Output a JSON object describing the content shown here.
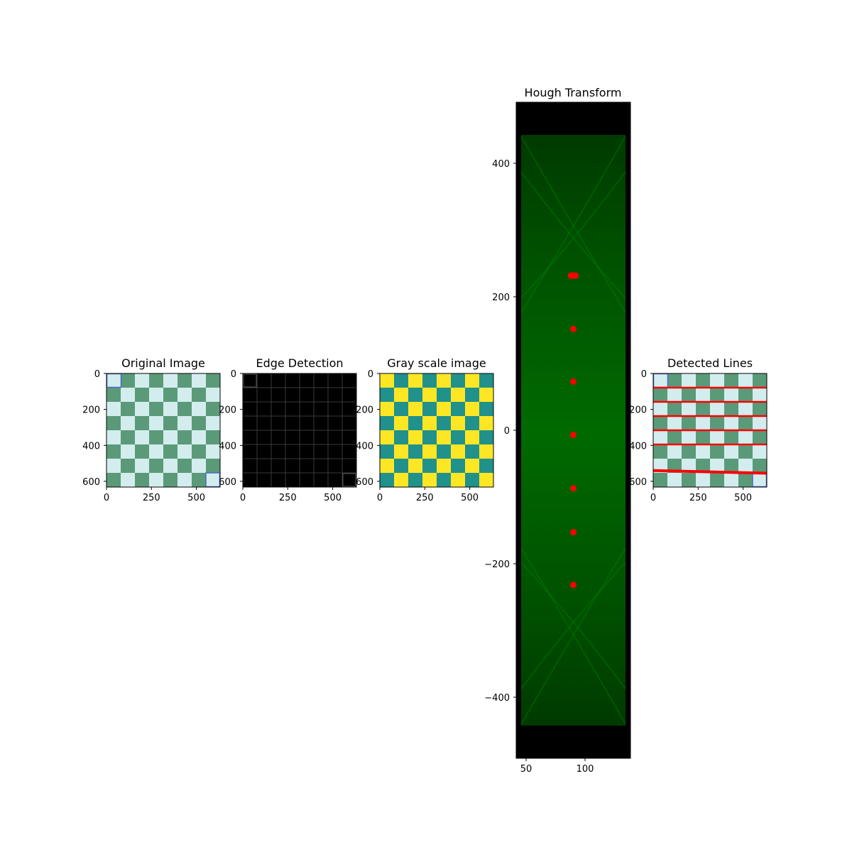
{
  "chart_data": [
    {
      "type": "image",
      "title": "Original Image",
      "xticks": [
        "0",
        "250",
        "500"
      ],
      "yticks": [
        "0",
        "200",
        "400",
        "600"
      ],
      "xlim": [
        0,
        632
      ],
      "ylim": [
        632,
        0
      ],
      "colors": {
        "dark": "#5b9a78",
        "light": "#d3edef",
        "highlight": "#4f68c8"
      }
    },
    {
      "type": "image",
      "title": "Edge Detection",
      "xticks": [
        "0",
        "250",
        "500"
      ],
      "yticks": [
        "0",
        "200",
        "400",
        "600"
      ],
      "xlim": [
        0,
        632
      ],
      "ylim": [
        632,
        0
      ],
      "colors": {
        "background": "#000000",
        "edges": "#3a3a3a"
      }
    },
    {
      "type": "heatmap",
      "title": "Gray scale image",
      "xticks": [
        "0",
        "250",
        "500"
      ],
      "yticks": [
        "0",
        "200",
        "400",
        "600"
      ],
      "xlim": [
        0,
        632
      ],
      "ylim": [
        632,
        0
      ],
      "colors": {
        "dark": "#21918c",
        "light": "#fde725"
      }
    },
    {
      "type": "heatmap",
      "title": "Hough Transform",
      "xticks": [
        "50",
        "100"
      ],
      "yticks": [
        "400",
        "200",
        "0",
        "−200",
        "−400"
      ],
      "xlim": [
        41,
        139
      ],
      "ylim": [
        -492,
        492
      ],
      "colors": {
        "background": "#000000",
        "accumulator": "#006400",
        "peaks": "#ff0000"
      },
      "peaks": [
        {
          "theta": 88,
          "rho": 232
        },
        {
          "theta": 90,
          "rho": 232
        },
        {
          "theta": 92,
          "rho": 232
        },
        {
          "theta": 90,
          "rho": 152
        },
        {
          "theta": 90,
          "rho": 73
        },
        {
          "theta": 90,
          "rho": -7
        },
        {
          "theta": 90,
          "rho": -87
        },
        {
          "theta": 90,
          "rho": -153
        },
        {
          "theta": 90,
          "rho": -232
        }
      ]
    },
    {
      "type": "image",
      "title": "Detected Lines",
      "xticks": [
        "0",
        "250",
        "500"
      ],
      "yticks": [
        "0",
        "200",
        "400",
        "600"
      ],
      "xlim": [
        0,
        632
      ],
      "ylim": [
        632,
        0
      ],
      "colors": {
        "dark": "#5b9a78",
        "light": "#d3edef",
        "lines": "#ff0000"
      },
      "lines": [
        {
          "y_start": 79,
          "y_end": 79
        },
        {
          "y_start": 158,
          "y_end": 158
        },
        {
          "y_start": 237,
          "y_end": 237
        },
        {
          "y_start": 316,
          "y_end": 316
        },
        {
          "y_start": 395,
          "y_end": 395
        },
        {
          "y_start": 540,
          "y_end": 555
        }
      ]
    }
  ]
}
